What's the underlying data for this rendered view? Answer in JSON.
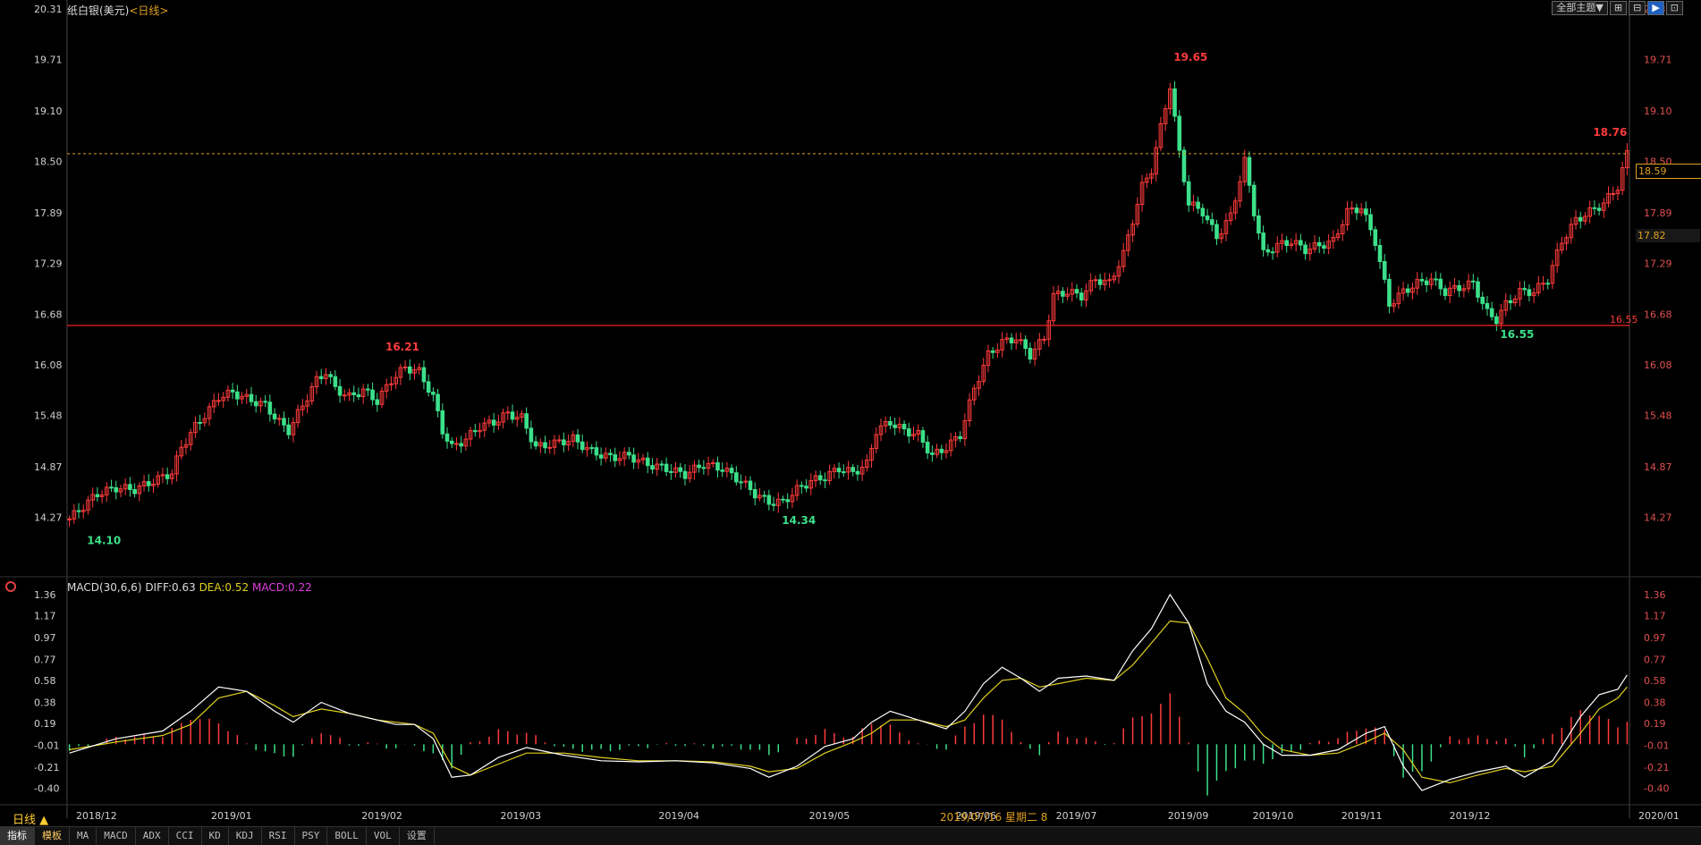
{
  "header": {
    "instrument": "纸白银(美元)",
    "timeframe": "<日线>",
    "buttons": [
      "全部主题▼",
      "⊞",
      "⊟",
      "▶",
      "⊡"
    ]
  },
  "colors": {
    "up": "#ff3b3b",
    "down": "#3ce08a",
    "grid": "#2a2a2a",
    "axis_text": "#d0d0d0",
    "axis_text_right": "#e05050",
    "support_line": "#e02020",
    "current_line": "#e0a020",
    "diff": "#ffffff",
    "dea": "#e0d020"
  },
  "current_price_box": "18.59",
  "secondary_price_box": "17.82",
  "cursor_date_text": "2019/07/16 星期二 8",
  "period_label": "日线 ▲",
  "macd_label": {
    "name": "MACD(30,6,6) DIFF:0.63",
    "dea": "DEA:0.52",
    "macd": "MACD:0.22"
  },
  "tabs": [
    "指标",
    "模板",
    "MA",
    "MACD",
    "ADX",
    "CCI",
    "KD",
    "KDJ",
    "RSI",
    "PSY",
    "BOLL",
    "VOL",
    "设置"
  ],
  "chart_data": [
    {
      "type": "candlestick",
      "ylim": [
        13.67,
        20.31
      ],
      "yticks": [
        "20.31",
        "19.71",
        "19.10",
        "18.50",
        "17.89",
        "17.29",
        "16.68",
        "16.08",
        "15.48",
        "14.87",
        "14.27"
      ],
      "xticks": [
        "2018/12",
        "2019/01",
        "2019/02",
        "2019/03",
        "2019/04",
        "2019/05",
        "2019/06",
        "2019/07",
        "2019/09",
        "2019/10",
        "2019/11",
        "2019/12",
        "2020/01"
      ],
      "annotations": [
        {
          "label": "14.10",
          "value": 14.1,
          "kind": "low"
        },
        {
          "label": "16.21",
          "value": 16.21,
          "kind": "high"
        },
        {
          "label": "14.34",
          "value": 14.34,
          "kind": "low"
        },
        {
          "label": "19.65",
          "value": 19.65,
          "kind": "high"
        },
        {
          "label": "16.55",
          "value": 16.55,
          "kind": "low"
        },
        {
          "label": "18.76",
          "value": 18.76,
          "kind": "high"
        }
      ],
      "support_line": {
        "value": 16.55,
        "label": "16.55"
      },
      "current_line": {
        "value": 18.59
      },
      "close_path": [
        [
          0,
          14.25
        ],
        [
          3,
          14.4
        ],
        [
          6,
          14.55
        ],
        [
          10,
          14.62
        ],
        [
          14,
          14.6
        ],
        [
          18,
          14.7
        ],
        [
          22,
          14.8
        ],
        [
          24,
          15.1
        ],
        [
          27,
          15.35
        ],
        [
          30,
          15.55
        ],
        [
          32,
          15.7
        ],
        [
          35,
          15.75
        ],
        [
          38,
          15.68
        ],
        [
          42,
          15.6
        ],
        [
          45,
          15.4
        ],
        [
          47,
          15.3
        ],
        [
          50,
          15.6
        ],
        [
          53,
          15.9
        ],
        [
          55,
          16.0
        ],
        [
          57,
          15.8
        ],
        [
          60,
          15.7
        ],
        [
          63,
          15.78
        ],
        [
          66,
          15.65
        ],
        [
          69,
          15.9
        ],
        [
          72,
          16.05
        ],
        [
          75,
          16.0
        ],
        [
          78,
          15.7
        ],
        [
          80,
          15.3
        ],
        [
          82,
          15.1
        ],
        [
          85,
          15.2
        ],
        [
          88,
          15.35
        ],
        [
          91,
          15.4
        ],
        [
          94,
          15.5
        ],
        [
          97,
          15.45
        ],
        [
          100,
          15.1
        ],
        [
          104,
          15.15
        ],
        [
          108,
          15.2
        ],
        [
          112,
          15.05
        ],
        [
          116,
          14.98
        ],
        [
          120,
          15.0
        ],
        [
          124,
          14.9
        ],
        [
          128,
          14.85
        ],
        [
          132,
          14.78
        ],
        [
          136,
          14.9
        ],
        [
          140,
          14.85
        ],
        [
          144,
          14.7
        ],
        [
          147,
          14.55
        ],
        [
          150,
          14.45
        ],
        [
          153,
          14.45
        ],
        [
          156,
          14.6
        ],
        [
          159,
          14.7
        ],
        [
          162,
          14.75
        ],
        [
          165,
          14.85
        ],
        [
          168,
          14.8
        ],
        [
          171,
          14.9
        ],
        [
          173,
          15.3
        ],
        [
          176,
          15.4
        ],
        [
          179,
          15.3
        ],
        [
          182,
          15.25
        ],
        [
          185,
          15.0
        ],
        [
          188,
          15.1
        ],
        [
          191,
          15.25
        ],
        [
          194,
          15.8
        ],
        [
          197,
          16.2
        ],
        [
          200,
          16.35
        ],
        [
          203,
          16.4
        ],
        [
          206,
          16.2
        ],
        [
          209,
          16.4
        ],
        [
          211,
          16.9
        ],
        [
          214,
          16.95
        ],
        [
          217,
          16.9
        ],
        [
          220,
          17.1
        ],
        [
          223,
          17.05
        ],
        [
          226,
          17.4
        ],
        [
          228,
          17.8
        ],
        [
          230,
          18.2
        ],
        [
          232,
          18.4
        ],
        [
          234,
          18.9
        ],
        [
          236,
          19.4
        ],
        [
          238,
          18.6
        ],
        [
          240,
          18.0
        ],
        [
          243,
          17.9
        ],
        [
          246,
          17.6
        ],
        [
          249,
          17.85
        ],
        [
          252,
          18.5
        ],
        [
          254,
          17.9
        ],
        [
          256,
          17.4
        ],
        [
          259,
          17.5
        ],
        [
          262,
          17.55
        ],
        [
          265,
          17.45
        ],
        [
          268,
          17.5
        ],
        [
          271,
          17.55
        ],
        [
          274,
          17.9
        ],
        [
          277,
          17.95
        ],
        [
          280,
          17.55
        ],
        [
          283,
          16.8
        ],
        [
          286,
          16.95
        ],
        [
          289,
          17.05
        ],
        [
          292,
          17.1
        ],
        [
          295,
          16.95
        ],
        [
          298,
          17.0
        ],
        [
          301,
          17.05
        ],
        [
          304,
          16.7
        ],
        [
          306,
          16.62
        ],
        [
          308,
          16.8
        ],
        [
          311,
          16.95
        ],
        [
          314,
          16.95
        ],
        [
          317,
          17.1
        ],
        [
          320,
          17.55
        ],
        [
          323,
          17.8
        ],
        [
          326,
          17.9
        ],
        [
          329,
          18.0
        ],
        [
          332,
          18.2
        ],
        [
          334,
          18.59
        ]
      ]
    },
    {
      "type": "macd",
      "ylim": [
        -0.55,
        1.4
      ],
      "yticks": [
        "1.36",
        "1.17",
        "0.97",
        "0.77",
        "0.58",
        "0.38",
        "0.19",
        "-0.01",
        "-0.21",
        "-0.40"
      ],
      "diff_path": [
        [
          0,
          -0.08
        ],
        [
          10,
          0.05
        ],
        [
          20,
          0.12
        ],
        [
          26,
          0.3
        ],
        [
          32,
          0.52
        ],
        [
          38,
          0.48
        ],
        [
          44,
          0.3
        ],
        [
          48,
          0.2
        ],
        [
          54,
          0.38
        ],
        [
          60,
          0.28
        ],
        [
          66,
          0.22
        ],
        [
          70,
          0.18
        ],
        [
          74,
          0.18
        ],
        [
          78,
          0.05
        ],
        [
          82,
          -0.3
        ],
        [
          86,
          -0.28
        ],
        [
          92,
          -0.12
        ],
        [
          98,
          -0.03
        ],
        [
          106,
          -0.1
        ],
        [
          114,
          -0.15
        ],
        [
          122,
          -0.16
        ],
        [
          130,
          -0.15
        ],
        [
          138,
          -0.17
        ],
        [
          146,
          -0.22
        ],
        [
          150,
          -0.3
        ],
        [
          156,
          -0.2
        ],
        [
          162,
          -0.02
        ],
        [
          168,
          0.05
        ],
        [
          172,
          0.2
        ],
        [
          176,
          0.3
        ],
        [
          182,
          0.22
        ],
        [
          188,
          0.14
        ],
        [
          192,
          0.3
        ],
        [
          196,
          0.55
        ],
        [
          200,
          0.7
        ],
        [
          204,
          0.6
        ],
        [
          208,
          0.48
        ],
        [
          212,
          0.6
        ],
        [
          218,
          0.62
        ],
        [
          224,
          0.58
        ],
        [
          228,
          0.85
        ],
        [
          232,
          1.05
        ],
        [
          236,
          1.36
        ],
        [
          240,
          1.1
        ],
        [
          244,
          0.55
        ],
        [
          248,
          0.3
        ],
        [
          252,
          0.2
        ],
        [
          256,
          0.0
        ],
        [
          260,
          -0.1
        ],
        [
          266,
          -0.1
        ],
        [
          272,
          -0.05
        ],
        [
          278,
          0.1
        ],
        [
          282,
          0.16
        ],
        [
          286,
          -0.2
        ],
        [
          290,
          -0.42
        ],
        [
          296,
          -0.32
        ],
        [
          302,
          -0.25
        ],
        [
          308,
          -0.2
        ],
        [
          312,
          -0.3
        ],
        [
          318,
          -0.15
        ],
        [
          324,
          0.25
        ],
        [
          328,
          0.45
        ],
        [
          332,
          0.5
        ],
        [
          334,
          0.63
        ]
      ],
      "dea_path": [
        [
          0,
          -0.05
        ],
        [
          10,
          0.02
        ],
        [
          20,
          0.08
        ],
        [
          26,
          0.18
        ],
        [
          32,
          0.42
        ],
        [
          38,
          0.48
        ],
        [
          44,
          0.35
        ],
        [
          48,
          0.25
        ],
        [
          54,
          0.32
        ],
        [
          60,
          0.28
        ],
        [
          66,
          0.22
        ],
        [
          70,
          0.2
        ],
        [
          74,
          0.18
        ],
        [
          78,
          0.1
        ],
        [
          82,
          -0.2
        ],
        [
          86,
          -0.28
        ],
        [
          92,
          -0.18
        ],
        [
          98,
          -0.08
        ],
        [
          106,
          -0.08
        ],
        [
          114,
          -0.12
        ],
        [
          122,
          -0.15
        ],
        [
          130,
          -0.15
        ],
        [
          138,
          -0.16
        ],
        [
          146,
          -0.2
        ],
        [
          150,
          -0.25
        ],
        [
          156,
          -0.22
        ],
        [
          162,
          -0.08
        ],
        [
          168,
          0.02
        ],
        [
          172,
          0.1
        ],
        [
          176,
          0.22
        ],
        [
          182,
          0.22
        ],
        [
          188,
          0.16
        ],
        [
          192,
          0.22
        ],
        [
          196,
          0.42
        ],
        [
          200,
          0.58
        ],
        [
          204,
          0.6
        ],
        [
          208,
          0.52
        ],
        [
          212,
          0.55
        ],
        [
          218,
          0.6
        ],
        [
          224,
          0.58
        ],
        [
          228,
          0.72
        ],
        [
          232,
          0.92
        ],
        [
          236,
          1.12
        ],
        [
          240,
          1.1
        ],
        [
          244,
          0.78
        ],
        [
          248,
          0.42
        ],
        [
          252,
          0.28
        ],
        [
          256,
          0.08
        ],
        [
          260,
          -0.05
        ],
        [
          266,
          -0.1
        ],
        [
          272,
          -0.08
        ],
        [
          278,
          0.02
        ],
        [
          282,
          0.1
        ],
        [
          286,
          -0.05
        ],
        [
          290,
          -0.3
        ],
        [
          296,
          -0.35
        ],
        [
          302,
          -0.28
        ],
        [
          308,
          -0.22
        ],
        [
          312,
          -0.25
        ],
        [
          318,
          -0.2
        ],
        [
          324,
          0.1
        ],
        [
          328,
          0.32
        ],
        [
          332,
          0.42
        ],
        [
          334,
          0.52
        ]
      ]
    }
  ]
}
